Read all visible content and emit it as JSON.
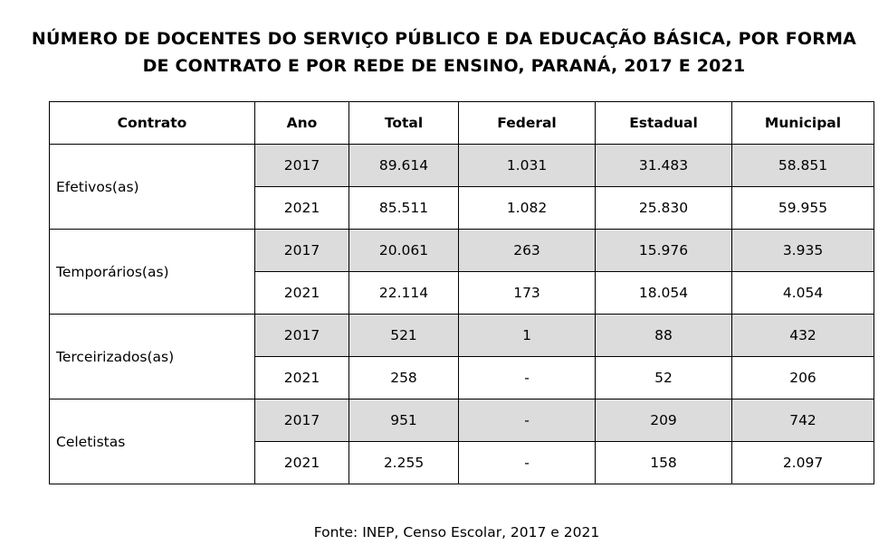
{
  "title": {
    "line1": "NÚMERO DE DOCENTES DO SERVIÇO PÚBLICO E DA EDUCAÇÃO BÁSICA, POR FORMA",
    "line2": "DE CONTRATO E POR REDE DE ENSINO,  PARANÁ, 2017 E 2021"
  },
  "table": {
    "headers": [
      "Contrato",
      "Ano",
      "Total",
      "Federal",
      "Estadual",
      "Municipal"
    ],
    "groups": [
      {
        "contrato": "Efetivos(as)",
        "rows": [
          [
            "2017",
            "89.614",
            "1.031",
            "31.483",
            "58.851"
          ],
          [
            "2021",
            "85.511",
            "1.082",
            "25.830",
            "59.955"
          ]
        ]
      },
      {
        "contrato": "Temporários(as)",
        "rows": [
          [
            "2017",
            "20.061",
            "263",
            "15.976",
            "3.935"
          ],
          [
            "2021",
            "22.114",
            "173",
            "18.054",
            "4.054"
          ]
        ]
      },
      {
        "contrato": "Terceirizados(as)",
        "rows": [
          [
            "2017",
            "521",
            "1",
            "88",
            "432"
          ],
          [
            "2021",
            "258",
            "-",
            "52",
            "206"
          ]
        ]
      },
      {
        "contrato": "Celetistas",
        "rows": [
          [
            "2017",
            "951",
            "-",
            "209",
            "742"
          ],
          [
            "2021",
            "2.255",
            "-",
            "158",
            "2.097"
          ]
        ]
      }
    ]
  },
  "source": "Fonte: INEP, Censo Escolar, 2017 e 2021",
  "colors": {
    "shaded_row": "#dcdcdc",
    "border": "#000000"
  }
}
